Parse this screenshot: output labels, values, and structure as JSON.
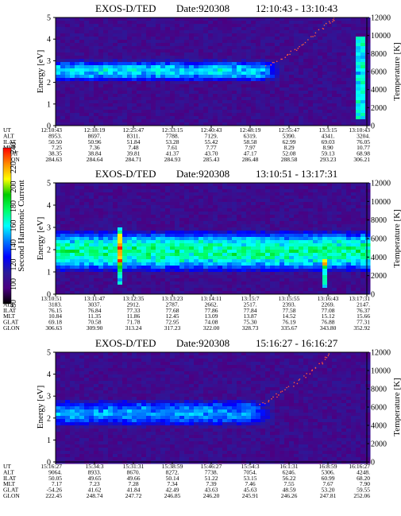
{
  "colorbar": {
    "label": "Second Harmonic Current",
    "ticks": [
      "80",
      "100",
      "120",
      "140",
      "160",
      "180",
      "200",
      "220",
      "240"
    ],
    "stops": [
      "#000000",
      "#4b0082",
      "#2a1a9a",
      "#0000ff",
      "#0077ff",
      "#00ffff",
      "#00ff66",
      "#00cc00",
      "#ffff00",
      "#ff8800",
      "#ff0000"
    ]
  },
  "chart_data": [
    {
      "type": "heatmap",
      "title": "EXOS-D/TED",
      "date_label": "Date:920308",
      "time_range": "12:10:43 - 13:10:43",
      "ylabel": "Energy [eV]",
      "ylim": [
        0,
        5
      ],
      "yticks": [
        "0",
        "1",
        "2",
        "3",
        "4",
        "5"
      ],
      "y2label": "Temperature [K]",
      "y2lim": [
        0,
        12000
      ],
      "y2ticks": [
        "0",
        "2000",
        "4000",
        "6000",
        "8000",
        "10000",
        "12000"
      ],
      "ephemeris_labels": [
        "UT",
        "ALT",
        "ILAT",
        "MLT",
        "GLAT",
        "GLON"
      ],
      "ephemeris_columns": [
        [
          "12:10:43",
          "8953.",
          "50.50",
          "7.25",
          "38.35",
          "284.63"
        ],
        [
          "12:18:19",
          "8697.",
          "50.96",
          "7.36",
          "38.84",
          "284.64"
        ],
        [
          "12:25:47",
          "8311.",
          "51.84",
          "7.48",
          "39.81",
          "284.71"
        ],
        [
          "12:33:15",
          "7788.",
          "53.28",
          "7.61",
          "41.37",
          "284.93"
        ],
        [
          "12:40:43",
          "7129.",
          "55.42",
          "7.77",
          "43.70",
          "285.43"
        ],
        [
          "12:48:19",
          "6319.",
          "58.58",
          "7.97",
          "47.17",
          "286.48"
        ],
        [
          "12:55:47",
          "5390.",
          "62.99",
          "8.29",
          "52.08",
          "288.58"
        ],
        [
          "13:3:15",
          "4341.",
          "69.03",
          "8.90",
          "59.13",
          "293.23"
        ],
        [
          "13:10:43",
          "3204.",
          "76.05",
          "10.77",
          "68.98",
          "306.21"
        ]
      ],
      "band": {
        "center_ev": 2.6,
        "width_ev": 0.8,
        "intensity": 150,
        "extent": 0.65
      },
      "streaks": [
        {
          "x": 0.975,
          "y_min_ev": 0.4,
          "y_max_ev": 4.2
        }
      ],
      "temperature_trace": {
        "x": [
          0.68,
          0.72,
          0.76,
          0.8,
          0.84,
          0.88,
          0.9
        ],
        "temperature_k": [
          6500,
          7200,
          8100,
          9100,
          10300,
          11500,
          12000
        ]
      }
    },
    {
      "type": "heatmap",
      "title": "EXOS-D/TED",
      "date_label": "Date:920308",
      "time_range": "13:10:51 - 13:17:31",
      "ylabel": "Energy [eV]",
      "ylim": [
        0,
        5
      ],
      "yticks": [
        "0",
        "1",
        "2",
        "3",
        "4",
        "5"
      ],
      "y2label": "Temperature [K]",
      "y2lim": [
        0,
        12000
      ],
      "y2ticks": [
        "0",
        "2000",
        "4000",
        "6000",
        "8000",
        "10000",
        "12000"
      ],
      "ephemeris_labels": [
        "UT",
        "ALT",
        "ILAT",
        "MLT",
        "GLAT",
        "GLON"
      ],
      "ephemeris_columns": [
        [
          "13:10:51",
          "3183.",
          "76.15",
          "10.84",
          "69.18",
          "306.63"
        ],
        [
          "13:11:47",
          "3037.",
          "76.84",
          "11.35",
          "70.58",
          "309.90"
        ],
        [
          "13:12:35",
          "2912.",
          "77.33",
          "11.86",
          "71.78",
          "313.24"
        ],
        [
          "13:13:23",
          "2787.",
          "77.68",
          "12.45",
          "72.95",
          "317.23"
        ],
        [
          "13:14:11",
          "2662.",
          "77.86",
          "13.09",
          "74.08",
          "322.00"
        ],
        [
          "13:15:7",
          "2517.",
          "77.84",
          "13.87",
          "75.30",
          "328.73"
        ],
        [
          "13:15:55",
          "2393.",
          "77.58",
          "14.52",
          "76.19",
          "335.67"
        ],
        [
          "13:16:43",
          "2269.",
          "77.08",
          "15.12",
          "76.88",
          "343.80"
        ],
        [
          "13:17:31",
          "2147.",
          "76.37",
          "15.66",
          "77.31",
          "352.92"
        ]
      ],
      "band": {
        "center_ev": 2.0,
        "width_ev": 1.5,
        "intensity": 165,
        "extent": 1.0
      },
      "streaks": [
        {
          "x": 0.2,
          "y_min_ev": 0.5,
          "y_max_ev": 3.0
        },
        {
          "x": 0.86,
          "y_min_ev": 0.3,
          "y_max_ev": 1.6
        }
      ],
      "temperature_trace": {
        "x": [],
        "temperature_k": []
      }
    },
    {
      "type": "heatmap",
      "title": "EXOS-D/TED",
      "date_label": "Date:920308",
      "time_range": "15:16:27 - 16:16:27",
      "ylabel": "Energy [eV]",
      "ylim": [
        0,
        5
      ],
      "yticks": [
        "0",
        "1",
        "2",
        "3",
        "4",
        "5"
      ],
      "y2label": "Temperature [K]",
      "y2lim": [
        0,
        12000
      ],
      "y2ticks": [
        "0",
        "2000",
        "4000",
        "6000",
        "8000",
        "10000",
        "12000"
      ],
      "ephemeris_labels": [
        "UT",
        "ALT",
        "ILAT",
        "MLT",
        "GLAT",
        "GLON"
      ],
      "ephemeris_columns": [
        [
          "15:16:27",
          "9064.",
          "50.05",
          "7.17",
          "-54.26",
          "222.45"
        ],
        [
          "15:34:3",
          "8933.",
          "49.65",
          "7.23",
          "41.62",
          "248.74"
        ],
        [
          "15:31:31",
          "8670.",
          "49.66",
          "7.28",
          "41.84",
          "247.72"
        ],
        [
          "15:38:59",
          "8272.",
          "50.14",
          "7.34",
          "42.49",
          "246.85"
        ],
        [
          "15:46:27",
          "7738.",
          "51.22",
          "7.39",
          "43.63",
          "246.20"
        ],
        [
          "15:54:3",
          "7054.",
          "53.15",
          "7.46",
          "45.63",
          "245.91"
        ],
        [
          "16:1:31",
          "6246.",
          "56.22",
          "7.55",
          "48.59",
          "246.26"
        ],
        [
          "16:8:59",
          "5306.",
          "60.99",
          "7.67",
          "53.20",
          "247.81"
        ],
        [
          "16:16:27",
          "4248.",
          "68.20",
          "7.90",
          "59.55",
          "252.06"
        ]
      ],
      "band": {
        "center_ev": 2.3,
        "width_ev": 1.0,
        "intensity": 140,
        "extent": 0.62
      },
      "streaks": [],
      "temperature_trace": {
        "x": [
          0.66,
          0.7,
          0.74,
          0.78,
          0.82,
          0.86,
          0.88
        ],
        "temperature_k": [
          6200,
          7000,
          7900,
          8900,
          9900,
          11000,
          12000
        ]
      }
    }
  ]
}
